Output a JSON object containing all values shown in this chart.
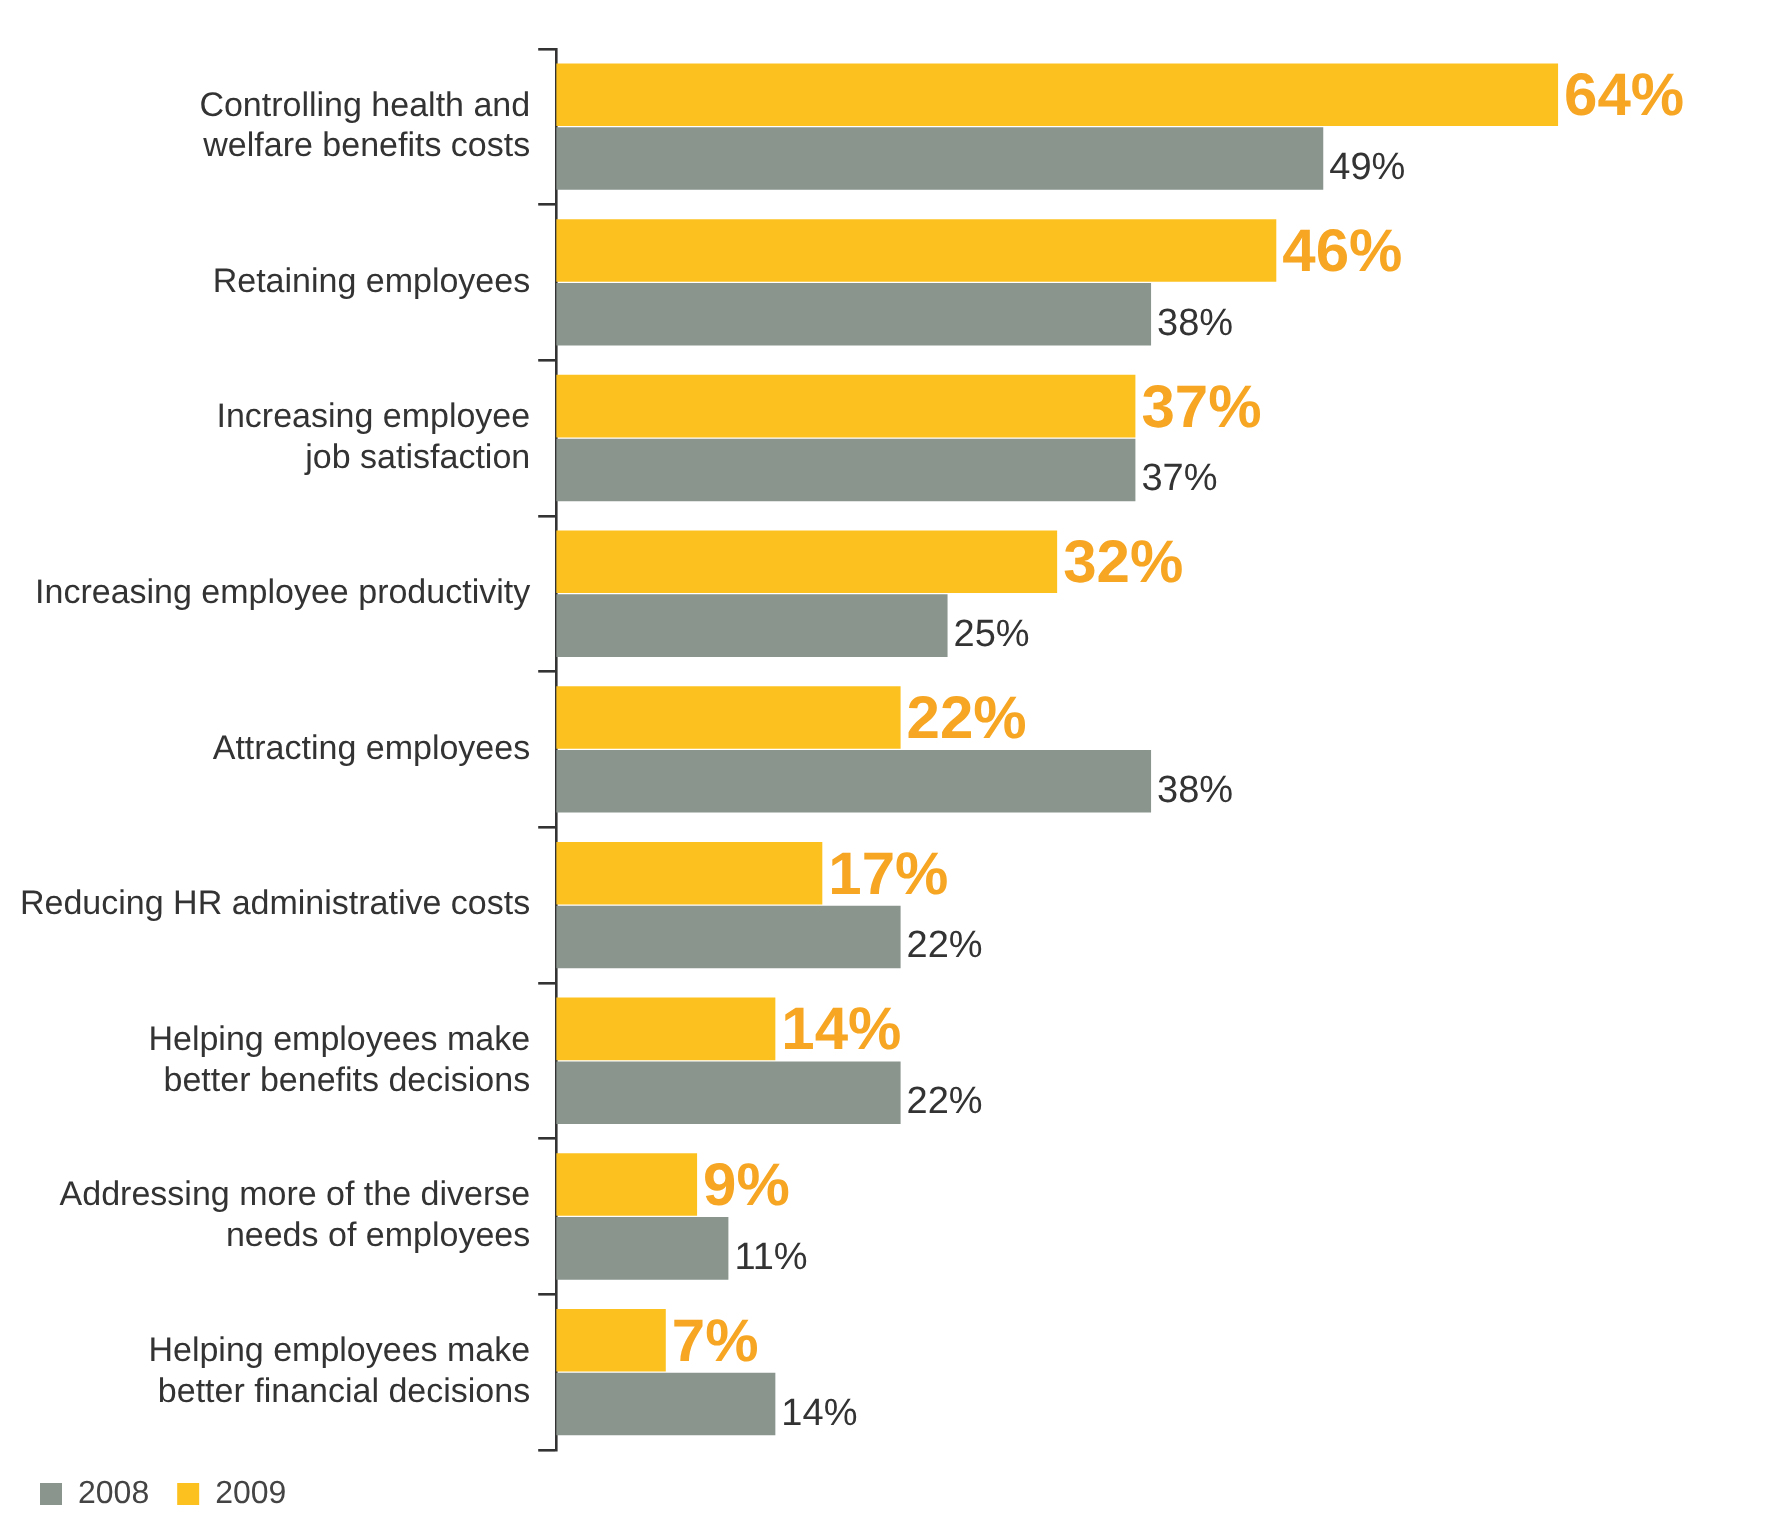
{
  "chart_data": {
    "type": "bar",
    "orientation": "horizontal",
    "categories": [
      "Controlling health and\nwelfare benefits costs",
      "Retaining employees",
      "Increasing employee\njob satisfaction",
      "Increasing employee productivity",
      "Attracting employees",
      "Reducing HR administrative costs",
      "Helping employees make\nbetter benefits decisions",
      "Addressing more of the diverse\nneeds of employees",
      "Helping employees make\nbetter financial decisions"
    ],
    "series": [
      {
        "name": "2009",
        "color": "#fdc11f",
        "values": [
          64,
          46,
          37,
          32,
          22,
          17,
          14,
          9,
          7
        ],
        "value_labels": [
          "64%",
          "46%",
          "37%",
          "32%",
          "22%",
          "17%",
          "14%",
          "9%",
          "7%"
        ]
      },
      {
        "name": "2008",
        "color": "#8a958e",
        "values": [
          49,
          38,
          37,
          25,
          38,
          22,
          22,
          11,
          14
        ],
        "value_labels": [
          "49%",
          "38%",
          "37%",
          "25%",
          "38%",
          "22%",
          "22%",
          "11%",
          "14%"
        ]
      }
    ],
    "tick_labels": "y",
    "legend": "bottom left"
  }
}
